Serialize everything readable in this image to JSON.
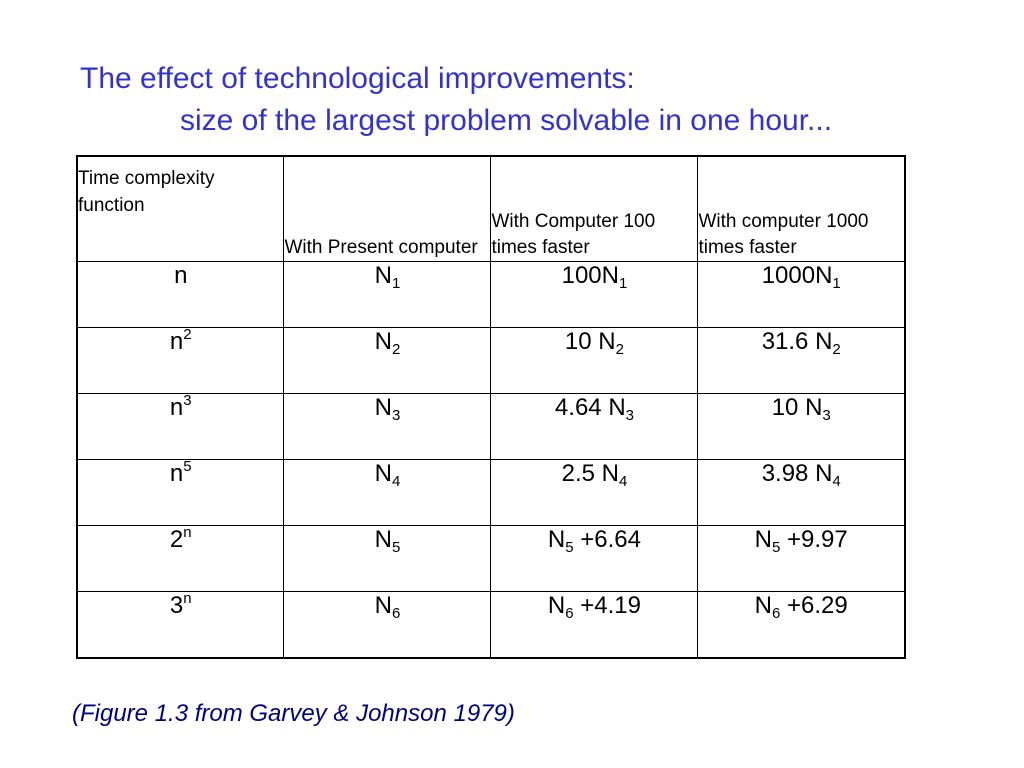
{
  "title": {
    "line1": "The effect of technological improvements:",
    "line2": "size of the largest problem solvable in one hour..."
  },
  "table": {
    "headers": [
      "Time complexity function",
      "With Present computer",
      "With Computer 100 times faster",
      "With computer 1000 times faster"
    ],
    "rows": [
      {
        "func": {
          "base": "n",
          "exp": ""
        },
        "present": {
          "pre": "",
          "sym": "N",
          "sub": "1",
          "post": ""
        },
        "x100": {
          "pre": "100",
          "sym": "N",
          "sub": "1",
          "post": ""
        },
        "x1000": {
          "pre": "1000",
          "sym": "N",
          "sub": "1",
          "post": ""
        }
      },
      {
        "func": {
          "base": "n",
          "exp": "2"
        },
        "present": {
          "pre": "",
          "sym": "N",
          "sub": "2",
          "post": ""
        },
        "x100": {
          "pre": "10 ",
          "sym": "N",
          "sub": "2",
          "post": ""
        },
        "x1000": {
          "pre": "31.6 ",
          "sym": "N",
          "sub": "2",
          "post": ""
        }
      },
      {
        "func": {
          "base": "n",
          "exp": "3"
        },
        "present": {
          "pre": "",
          "sym": "N",
          "sub": "3",
          "post": ""
        },
        "x100": {
          "pre": "4.64 ",
          "sym": "N",
          "sub": "3",
          "post": ""
        },
        "x1000": {
          "pre": "10 ",
          "sym": "N",
          "sub": "3",
          "post": ""
        }
      },
      {
        "func": {
          "base": "n",
          "exp": "5"
        },
        "present": {
          "pre": "",
          "sym": "N",
          "sub": "4",
          "post": ""
        },
        "x100": {
          "pre": "2.5 ",
          "sym": "N",
          "sub": "4",
          "post": ""
        },
        "x1000": {
          "pre": "3.98 ",
          "sym": "N",
          "sub": "4",
          "post": ""
        }
      },
      {
        "func": {
          "base": "2",
          "exp": "n"
        },
        "present": {
          "pre": "",
          "sym": "N",
          "sub": "5",
          "post": ""
        },
        "x100": {
          "pre": "",
          "sym": "N",
          "sub": "5",
          "post": " +6.64"
        },
        "x1000": {
          "pre": "",
          "sym": "N",
          "sub": "5",
          "post": " +9.97"
        }
      },
      {
        "func": {
          "base": "3",
          "exp": "n"
        },
        "present": {
          "pre": "",
          "sym": "N",
          "sub": "6",
          "post": ""
        },
        "x100": {
          "pre": "",
          "sym": "N",
          "sub": "6",
          "post": " +4.19"
        },
        "x1000": {
          "pre": "",
          "sym": "N",
          "sub": "6",
          "post": " +6.29"
        }
      }
    ]
  },
  "caption": "(Figure 1.3 from Garvey & Johnson 1979)",
  "colors": {
    "title": "#3333cc",
    "caption": "#000080",
    "border": "#000000"
  }
}
